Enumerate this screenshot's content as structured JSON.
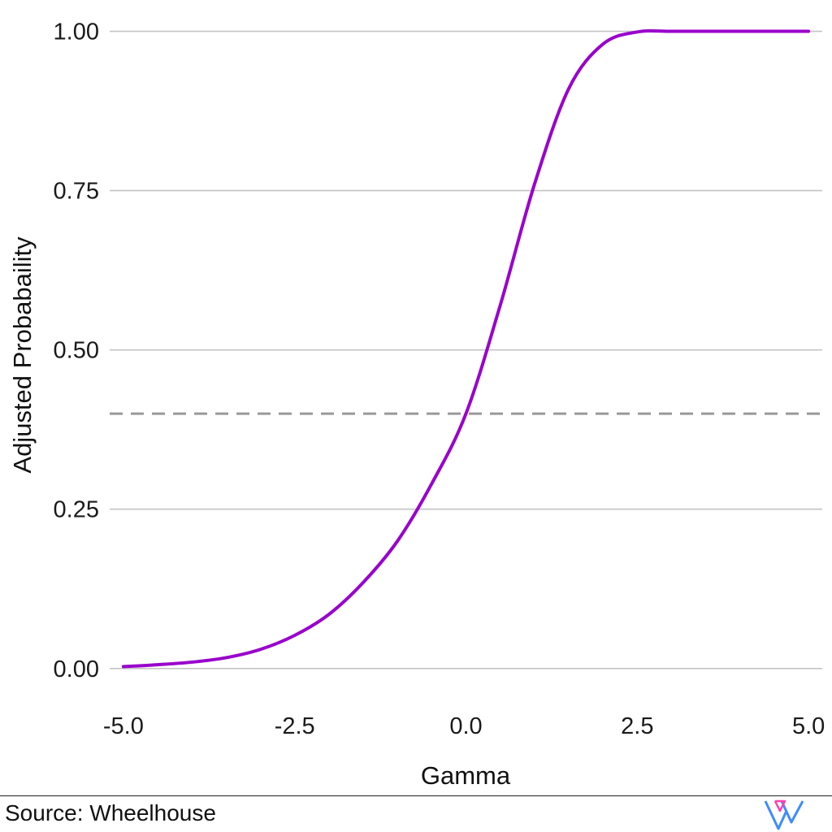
{
  "chart_data": {
    "type": "line",
    "title": "",
    "xlabel": "Gamma",
    "ylabel": "Adjusted Probabaility",
    "xlim": [
      -5.2,
      5.2
    ],
    "ylim": [
      -0.05,
      1.03
    ],
    "x_ticks": [
      -5.0,
      -2.5,
      0.0,
      2.5,
      5.0
    ],
    "x_tick_labels": [
      "-5.0",
      "-2.5",
      "0.0",
      "2.5",
      "5.0"
    ],
    "y_ticks": [
      0.0,
      0.25,
      0.5,
      0.75,
      1.0
    ],
    "y_tick_labels": [
      "0.00",
      "0.25",
      "0.50",
      "0.75",
      "1.00"
    ],
    "grid": "horizontal",
    "reference_line": {
      "y": 0.4,
      "style": "dashed",
      "color": "#999999"
    },
    "series": [
      {
        "color": "#9900cc",
        "x": [
          -5.0,
          -4.5,
          -4.0,
          -3.5,
          -3.0,
          -2.5,
          -2.0,
          -1.5,
          -1.0,
          -0.5,
          0.0,
          0.5,
          1.0,
          1.5,
          2.0,
          2.5,
          3.0,
          3.5,
          4.0,
          4.5,
          5.0
        ],
        "y": [
          0.003,
          0.006,
          0.01,
          0.017,
          0.03,
          0.052,
          0.085,
          0.135,
          0.2,
          0.29,
          0.4,
          0.57,
          0.76,
          0.91,
          0.98,
          0.999,
          1.0,
          1.0,
          1.0,
          1.0,
          1.0
        ]
      }
    ]
  },
  "footer": {
    "source": "Source: Wheelhouse",
    "logo_icon": "wheelhouse-logo-icon",
    "logo_colors": [
      "#ff3fb0",
      "#3f8cff"
    ]
  }
}
